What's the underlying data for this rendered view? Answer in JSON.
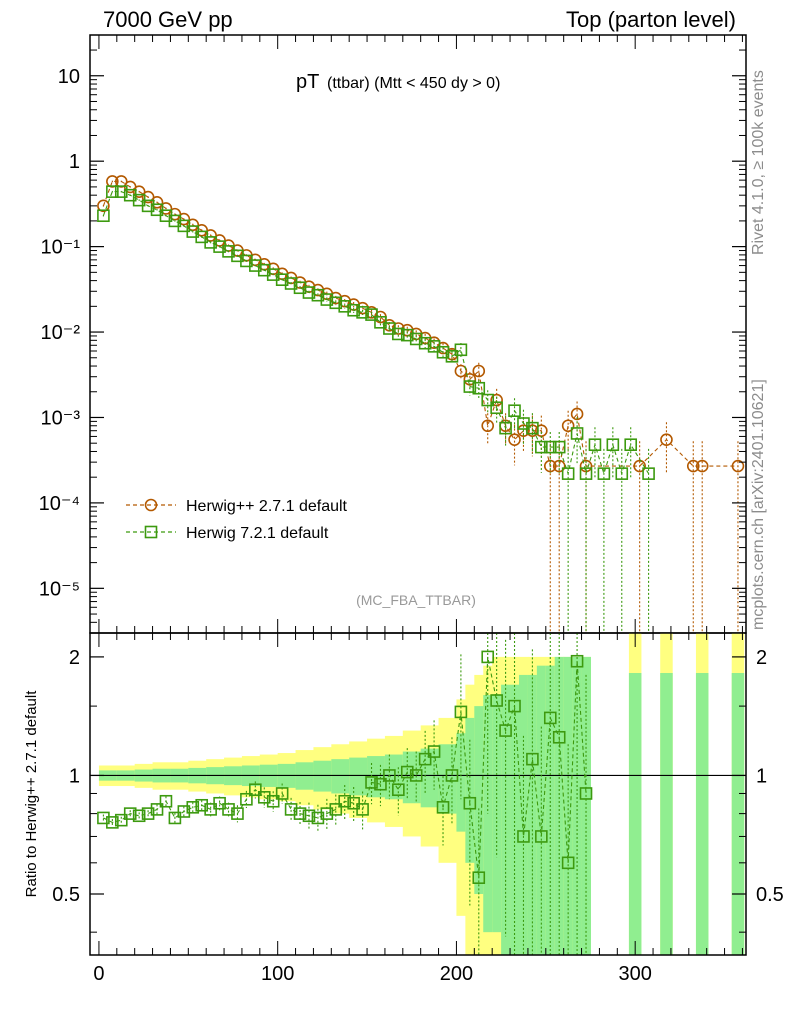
{
  "header": {
    "left": "7000 GeV pp",
    "right": "Top (parton level)"
  },
  "side_labels": {
    "rivet": "Rivet 4.1.0, ≥ 100k events",
    "mcplots": "mcplots.cern.ch [arXiv:2401.10621]"
  },
  "plot": {
    "title_main": "pT",
    "title_sub": "(ttbar) (Mtt < 450 dy > 0)",
    "analysis_tag": "(MC_FBA_TTBAR)",
    "ratio_ylabel": "Ratio to Herwig++ 2.7.1 default",
    "colors": {
      "herwigpp": "#b35900",
      "herwig7": "#3c9a0f",
      "band_outer": "#ffff80",
      "band_inner": "#90ee90"
    }
  },
  "chart_data": {
    "type": "scatter",
    "xlim": [
      -5,
      362
    ],
    "top_ylim": [
      3e-06,
      30
    ],
    "ratio_ylim": [
      0.35,
      2.3
    ],
    "y_scale": "log",
    "x_ticks": [
      "0",
      "100",
      "200",
      "300"
    ],
    "x_tick_values": [
      0,
      100,
      200,
      300
    ],
    "top_y_ticks": [
      {
        "v": 10,
        "label": "10"
      },
      {
        "v": 1,
        "label": "1"
      },
      {
        "v": 0.1,
        "label": "10⁻¹"
      },
      {
        "v": 0.01,
        "label": "10⁻²"
      },
      {
        "v": 0.001,
        "label": "10⁻³"
      },
      {
        "v": 0.0001,
        "label": "10⁻⁴"
      },
      {
        "v": 1e-05,
        "label": "10⁻⁵"
      }
    ],
    "ratio_y_ticks": [
      {
        "v": 2,
        "label": "2"
      },
      {
        "v": 1,
        "label": "1"
      },
      {
        "v": 0.5,
        "label": "0.5"
      }
    ],
    "legend": [
      "Herwig++ 2.7.1 default",
      "Herwig 7.2.1 default"
    ],
    "series": [
      {
        "name": "Herwig++ 2.7.1 default",
        "marker": "circle",
        "x": [
          2.5,
          7.5,
          12.5,
          17.5,
          22.5,
          27.5,
          32.5,
          37.5,
          42.5,
          47.5,
          52.5,
          57.5,
          62.5,
          67.5,
          72.5,
          77.5,
          82.5,
          87.5,
          92.5,
          97.5,
          102.5,
          107.5,
          112.5,
          117.5,
          122.5,
          127.5,
          132.5,
          137.5,
          142.5,
          147.5,
          152.5,
          157.5,
          162.5,
          167.5,
          172.5,
          177.5,
          182.5,
          187.5,
          192.5,
          197.5,
          202.5,
          207.5,
          212.5,
          217.5,
          222.5,
          227.5,
          232.5,
          237.5,
          242.5,
          247.5,
          252.5,
          257.5,
          262.5,
          267.5,
          272.5,
          302.5,
          317.5,
          332.5,
          337.5,
          357.5
        ],
        "y": [
          0.3,
          0.58,
          0.58,
          0.5,
          0.44,
          0.38,
          0.33,
          0.28,
          0.24,
          0.21,
          0.18,
          0.155,
          0.135,
          0.118,
          0.103,
          0.09,
          0.079,
          0.07,
          0.062,
          0.055,
          0.048,
          0.043,
          0.038,
          0.034,
          0.031,
          0.028,
          0.025,
          0.023,
          0.021,
          0.019,
          0.017,
          0.015,
          0.012,
          0.011,
          0.0105,
          0.0095,
          0.0085,
          0.0075,
          0.0065,
          0.0055,
          0.0035,
          0.0028,
          0.0035,
          0.0008,
          0.0016,
          0.0008,
          0.00055,
          0.0007,
          0.0007,
          0.0007,
          0.00027,
          0.00027,
          0.0008,
          0.0011,
          0.00027,
          0.00027,
          0.00055,
          0.00027,
          0.00027,
          0.00027
        ],
        "yerr": [
          0.02,
          0.02,
          0.02,
          0.02,
          0.02,
          0.02,
          0.02,
          0.02,
          0.02,
          0.02,
          0.03,
          0.03,
          0.03,
          0.03,
          0.03,
          0.03,
          0.03,
          0.03,
          0.04,
          0.04,
          0.04,
          0.04,
          0.05,
          0.05,
          0.05,
          0.06,
          0.06,
          0.06,
          0.07,
          0.07,
          0.08,
          0.08,
          0.09,
          0.09,
          0.1,
          0.1,
          0.12,
          0.12,
          0.14,
          0.15,
          0.2,
          0.22,
          0.25,
          0.4,
          0.35,
          0.4,
          0.5,
          0.45,
          0.5,
          0.5,
          0.95,
          0.95,
          0.5,
          0.4,
          0.95,
          0.95,
          0.6,
          0.95,
          0.95,
          0.95
        ]
      },
      {
        "name": "Herwig 7.2.1 default",
        "marker": "square",
        "x": [
          2.5,
          7.5,
          12.5,
          17.5,
          22.5,
          27.5,
          32.5,
          37.5,
          42.5,
          47.5,
          52.5,
          57.5,
          62.5,
          67.5,
          72.5,
          77.5,
          82.5,
          87.5,
          92.5,
          97.5,
          102.5,
          107.5,
          112.5,
          117.5,
          122.5,
          127.5,
          132.5,
          137.5,
          142.5,
          147.5,
          152.5,
          157.5,
          162.5,
          167.5,
          172.5,
          177.5,
          182.5,
          187.5,
          192.5,
          197.5,
          202.5,
          207.5,
          212.5,
          217.5,
          222.5,
          227.5,
          232.5,
          237.5,
          242.5,
          247.5,
          252.5,
          257.5,
          262.5,
          267.5,
          272.5,
          277.5,
          282.5,
          287.5,
          292.5,
          297.5,
          307.5
        ],
        "y": [
          0.23,
          0.44,
          0.44,
          0.4,
          0.35,
          0.3,
          0.27,
          0.23,
          0.2,
          0.175,
          0.15,
          0.13,
          0.112,
          0.1,
          0.088,
          0.078,
          0.068,
          0.06,
          0.053,
          0.047,
          0.041,
          0.037,
          0.033,
          0.029,
          0.027,
          0.024,
          0.022,
          0.02,
          0.018,
          0.017,
          0.016,
          0.013,
          0.011,
          0.0095,
          0.0092,
          0.0083,
          0.0074,
          0.0068,
          0.0058,
          0.0052,
          0.0062,
          0.0023,
          0.0022,
          0.0016,
          0.0013,
          0.00075,
          0.0012,
          0.00085,
          0.00075,
          0.00045,
          0.00045,
          0.00045,
          0.00022,
          0.00065,
          0.00022,
          0.00048,
          0.00022,
          0.00048,
          0.00022,
          0.00048,
          0.00022
        ],
        "yerr": [
          0.02,
          0.02,
          0.02,
          0.02,
          0.02,
          0.02,
          0.02,
          0.02,
          0.02,
          0.02,
          0.03,
          0.03,
          0.03,
          0.03,
          0.03,
          0.03,
          0.03,
          0.03,
          0.04,
          0.04,
          0.04,
          0.04,
          0.05,
          0.05,
          0.05,
          0.06,
          0.06,
          0.06,
          0.07,
          0.07,
          0.08,
          0.08,
          0.09,
          0.09,
          0.1,
          0.1,
          0.12,
          0.12,
          0.14,
          0.15,
          0.2,
          0.22,
          0.25,
          0.3,
          0.35,
          0.4,
          0.4,
          0.45,
          0.5,
          0.5,
          0.5,
          0.5,
          0.95,
          0.55,
          0.95,
          0.6,
          0.95,
          0.6,
          0.95,
          0.6,
          0.95
        ]
      }
    ],
    "ratio_points": {
      "x": [
        2.5,
        7.5,
        12.5,
        17.5,
        22.5,
        27.5,
        32.5,
        37.5,
        42.5,
        47.5,
        52.5,
        57.5,
        62.5,
        67.5,
        72.5,
        77.5,
        82.5,
        87.5,
        92.5,
        97.5,
        102.5,
        107.5,
        112.5,
        117.5,
        122.5,
        127.5,
        132.5,
        137.5,
        142.5,
        147.5,
        152.5,
        157.5,
        162.5,
        167.5,
        172.5,
        177.5,
        182.5,
        187.5,
        192.5,
        197.5,
        202.5,
        207.5,
        212.5,
        217.5,
        222.5,
        227.5,
        232.5,
        237.5,
        242.5,
        247.5,
        252.5,
        257.5,
        262.5,
        267.5,
        272.5
      ],
      "y": [
        0.78,
        0.76,
        0.77,
        0.8,
        0.79,
        0.8,
        0.82,
        0.86,
        0.78,
        0.81,
        0.83,
        0.84,
        0.82,
        0.85,
        0.82,
        0.8,
        0.87,
        0.92,
        0.88,
        0.86,
        0.9,
        0.82,
        0.8,
        0.79,
        0.78,
        0.8,
        0.82,
        0.86,
        0.85,
        0.82,
        0.96,
        0.95,
        1.0,
        0.92,
        1.02,
        1.0,
        1.1,
        1.15,
        0.83,
        1.0,
        1.45,
        0.85,
        0.55,
        2.0,
        1.55,
        1.3,
        1.5,
        0.7,
        1.1,
        0.7,
        1.4,
        1.25,
        0.6,
        1.95,
        0.9
      ],
      "yerr": [
        0.02,
        0.02,
        0.02,
        0.02,
        0.02,
        0.02,
        0.03,
        0.03,
        0.03,
        0.03,
        0.03,
        0.03,
        0.04,
        0.04,
        0.04,
        0.05,
        0.05,
        0.05,
        0.06,
        0.06,
        0.06,
        0.07,
        0.07,
        0.08,
        0.08,
        0.09,
        0.09,
        0.1,
        0.1,
        0.11,
        0.12,
        0.12,
        0.13,
        0.14,
        0.15,
        0.15,
        0.18,
        0.2,
        0.2,
        0.25,
        0.4,
        0.45,
        0.5,
        0.6,
        0.6,
        0.7,
        0.8,
        0.8,
        0.9,
        0.9,
        1.0,
        1.0,
        1.0,
        1.0,
        1.0
      ]
    },
    "ratio_band": {
      "x_edges": [
        0,
        10,
        20,
        30,
        40,
        50,
        60,
        70,
        80,
        90,
        100,
        110,
        120,
        130,
        140,
        150,
        160,
        170,
        180,
        190,
        200,
        205,
        210,
        215,
        220,
        225,
        230,
        235,
        240,
        245,
        250,
        255,
        260,
        265,
        270,
        275
      ],
      "inner_half": [
        0.03,
        0.03,
        0.035,
        0.04,
        0.04,
        0.045,
        0.05,
        0.055,
        0.06,
        0.065,
        0.07,
        0.08,
        0.09,
        0.1,
        0.11,
        0.12,
        0.13,
        0.15,
        0.17,
        0.2,
        0.28,
        0.4,
        0.5,
        0.6,
        0.6,
        0.7,
        0.7,
        0.8,
        0.8,
        0.9,
        0.9,
        1.0,
        1.0,
        1.0,
        1.0
      ],
      "outer_half": [
        0.06,
        0.06,
        0.07,
        0.08,
        0.08,
        0.09,
        0.1,
        0.11,
        0.12,
        0.13,
        0.14,
        0.16,
        0.18,
        0.2,
        0.22,
        0.24,
        0.26,
        0.3,
        0.34,
        0.4,
        0.56,
        0.7,
        0.8,
        0.9,
        1.0,
        1.0,
        1.0,
        1.0,
        1.0,
        1.0,
        1.0,
        1.0,
        1.0,
        1.0,
        1.0
      ],
      "spikes_x": [
        300,
        317.5,
        337.5,
        357.5
      ],
      "spike_width": 7
    }
  }
}
